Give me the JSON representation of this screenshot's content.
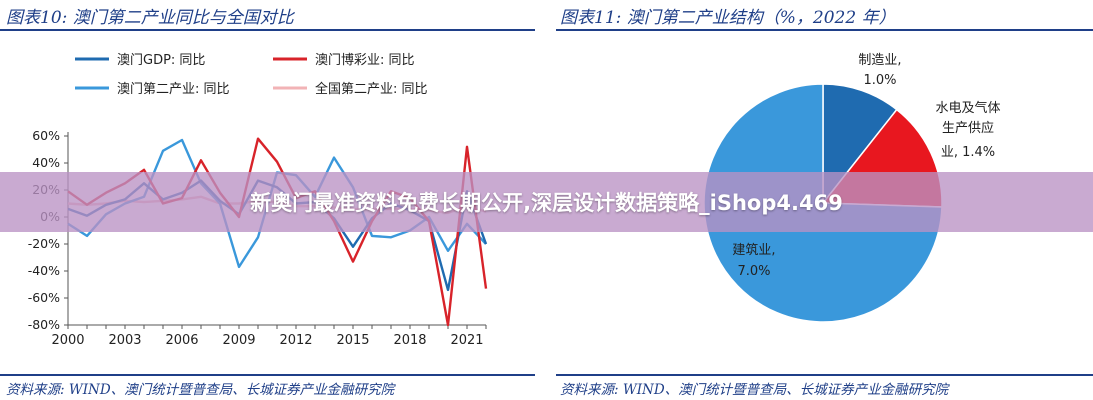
{
  "left_header": "图表10:  澳门第二产业同比与全国对比",
  "right_header": "图表11:  澳门第二产业结构（%，2022 年）",
  "left_source": "资料来源: WIND、澳门统计暨普查局、长城证券产业金融研究院",
  "right_source": "资料来源: WIND、澳门统计暨普查局、长城证券产业金融研究院",
  "overlay_text": "新奥门最准资料免费长期公开,深层设计数据策略_iShop4.469",
  "colors": {
    "header": "#1f3f88",
    "gdp": "#1f6bb0",
    "gaming": "#d8232a",
    "secondary": "#3a98db",
    "national": "#f2b3b6",
    "pie_manufacturing": "#1f6bb0",
    "pie_utilities": "#e8171f",
    "pie_construction": "#3a98db"
  },
  "chart_data": [
    {
      "type": "line",
      "title": "",
      "xlabel": "",
      "ylabel": "",
      "x_ticks": [
        "2000",
        "2003",
        "2006",
        "2009",
        "2012",
        "2015",
        "2018",
        "2021"
      ],
      "y_ticks": [
        "60%",
        "40%",
        "20%",
        "0%",
        "-20%",
        "-40%",
        "-60%",
        "-80%"
      ],
      "xlim": [
        2000,
        2022
      ],
      "ylim": [
        -80,
        65
      ],
      "grid": false,
      "legend_position": "top",
      "x": [
        2000,
        2001,
        2002,
        2003,
        2004,
        2005,
        2006,
        2007,
        2008,
        2009,
        2010,
        2011,
        2012,
        2013,
        2014,
        2015,
        2016,
        2017,
        2018,
        2019,
        2020,
        2021,
        2022
      ],
      "series": [
        {
          "name": "澳门GDP: 同比",
          "color_key": "gdp",
          "values": [
            6,
            1,
            9,
            13,
            25,
            13,
            18,
            27,
            12,
            2,
            27,
            22,
            10,
            11,
            -1,
            -22,
            -1,
            10,
            5,
            -3,
            -54,
            19,
            -20
          ]
        },
        {
          "name": "澳门博彩业: 同比",
          "color_key": "gaming",
          "values": [
            19,
            9,
            18,
            25,
            35,
            10,
            14,
            42,
            18,
            0,
            58,
            41,
            14,
            19,
            -3,
            -33,
            -3,
            19,
            14,
            -3,
            -80,
            52,
            -53
          ]
        },
        {
          "name": "澳门第二产业: 同比",
          "color_key": "secondary",
          "values": [
            -5,
            -14,
            2,
            10,
            15,
            49,
            57,
            25,
            10,
            -37,
            -15,
            33,
            31,
            15,
            44,
            22,
            -14,
            -15,
            -10,
            0,
            -25,
            -5,
            -20
          ]
        },
        {
          "name": "全国第二产业: 同比",
          "color_key": "national",
          "values": [
            10,
            9,
            10,
            12,
            11,
            12,
            13,
            15,
            10,
            10,
            12,
            11,
            8,
            8,
            7,
            6,
            6,
            6,
            6,
            5,
            3,
            8,
            4
          ]
        }
      ]
    },
    {
      "type": "pie",
      "title": "",
      "slices": [
        {
          "label": "制造业,",
          "value_label": "1.0%",
          "value": 1.0,
          "color_key": "pie_manufacturing"
        },
        {
          "label": "水电及气体生产供应业,",
          "label_lines": [
            "水电及气体",
            "生产供应",
            "业, 1.4%"
          ],
          "value": 1.4,
          "color_key": "pie_utilities"
        },
        {
          "label": "建筑业,",
          "value_label": "7.0%",
          "value": 7.0,
          "color_key": "pie_construction"
        }
      ]
    }
  ]
}
